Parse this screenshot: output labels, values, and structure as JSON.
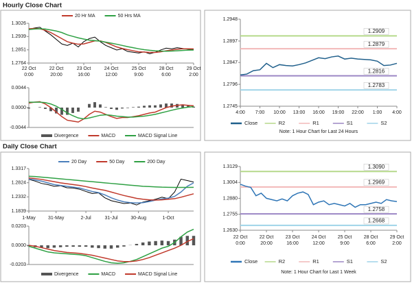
{
  "headings": [
    "Hourly Close Chart",
    "Daily Close Chart"
  ],
  "chart_data": [
    {
      "type": "line",
      "xlim": [
        0,
        30
      ],
      "ylim": [
        1.2764,
        1.3026
      ],
      "yticks": [
        1.2764,
        1.2851,
        1.2939,
        1.3026
      ],
      "xticks": [
        {
          "value": 0,
          "label": [
            "22 Oct",
            "0:00"
          ]
        },
        {
          "value": 5,
          "label": [
            "22 Oct",
            "20:00"
          ]
        },
        {
          "value": 10,
          "label": [
            "23 Oct",
            "16:00"
          ]
        },
        {
          "value": 15,
          "label": [
            "24 Oct",
            "12:00"
          ]
        },
        {
          "value": 20,
          "label": [
            "25 Oct",
            "9:00"
          ]
        },
        {
          "value": 25,
          "label": [
            "28 Oct",
            "6:00"
          ]
        },
        {
          "value": 30,
          "label": [
            "29 Oct",
            "2:00"
          ]
        }
      ],
      "series": [
        {
          "color": "#000000",
          "values": [
            1.2985,
            1.2995,
            1.3,
            1.2975,
            1.295,
            1.292,
            1.289,
            1.288,
            1.2895,
            1.287,
            1.2905,
            1.2925,
            1.2935,
            1.2905,
            1.288,
            1.2865,
            1.285,
            1.2858,
            1.284,
            1.2835,
            1.283,
            1.2838,
            1.2825,
            1.2835,
            1.285,
            1.2862,
            1.2858,
            1.2865,
            1.286,
            1.2855,
            1.2852
          ]
        },
        {
          "name": "20 Hr MA",
          "color": "#c0392b",
          "values": [
            1.299,
            1.2992,
            1.299,
            1.298,
            1.2965,
            1.2945,
            1.2925,
            1.2905,
            1.2895,
            1.2888,
            1.289,
            1.29,
            1.291,
            1.291,
            1.29,
            1.2885,
            1.287,
            1.286,
            1.2852,
            1.2845,
            1.2838,
            1.2836,
            1.2834,
            1.2834,
            1.2838,
            1.2845,
            1.285,
            1.2855,
            1.2858,
            1.2858,
            1.2857
          ]
        },
        {
          "name": "50 Hrs MA",
          "color": "#2ea043",
          "values": [
            1.2985,
            1.2988,
            1.299,
            1.2988,
            1.2982,
            1.2975,
            1.2965,
            1.295,
            1.294,
            1.293,
            1.2922,
            1.2915,
            1.2912,
            1.2908,
            1.2902,
            1.2895,
            1.2888,
            1.288,
            1.2872,
            1.2865,
            1.2858,
            1.2852,
            1.2848,
            1.2845,
            1.2843,
            1.2842,
            1.2843,
            1.2845,
            1.2847,
            1.2849,
            1.285
          ]
        }
      ]
    },
    {
      "type": "combo",
      "xlim": [
        0,
        30
      ],
      "ylim": [
        -0.0044,
        0.0044
      ],
      "yticks": [
        0.0044,
        {
          "value": 0,
          "label": "0.0000"
        },
        -0.0044
      ],
      "series": [
        {
          "name": "Divergence",
          "type": "bar",
          "color": "#555555",
          "values": [
            -0.0002,
            0,
            0.0001,
            -0.0003,
            -0.0008,
            -0.0013,
            -0.0016,
            -0.0016,
            -0.0012,
            -0.0009,
            0,
            0.0008,
            0.0012,
            0.0007,
            0.0001,
            -0.0003,
            -0.0005,
            -0.0002,
            -0.0001,
            0.0001,
            0.0002,
            0.0004,
            0.0005,
            0.0005,
            0.0007,
            0.0009,
            0.0009,
            0.0008,
            0.0007,
            0.0004,
            0.0002
          ]
        },
        {
          "name": "MACD",
          "color": "#c0392b",
          "values": [
            0.001,
            0.0012,
            0.0013,
            0.0008,
            0,
            -0.001,
            -0.002,
            -0.0028,
            -0.003,
            -0.0032,
            -0.0025,
            -0.0015,
            -0.0008,
            -0.001,
            -0.0015,
            -0.002,
            -0.0024,
            -0.0022,
            -0.0022,
            -0.002,
            -0.0018,
            -0.0015,
            -0.0012,
            -0.001,
            -0.0005,
            0,
            0.0003,
            0.0005,
            0.0006,
            0.0005,
            0.0004
          ]
        },
        {
          "name": "MACD Signal Line",
          "color": "#2ea043",
          "values": [
            0.0012,
            0.0012,
            0.0012,
            0.0011,
            0.0008,
            0.0003,
            -0.0004,
            -0.0012,
            -0.0018,
            -0.0023,
            -0.0025,
            -0.0023,
            -0.002,
            -0.0017,
            -0.0016,
            -0.0017,
            -0.0019,
            -0.002,
            -0.0021,
            -0.0021,
            -0.002,
            -0.0019,
            -0.0017,
            -0.0015,
            -0.0012,
            -0.0009,
            -0.0006,
            -0.0003,
            -0.0001,
            0.0001,
            0.0002
          ]
        }
      ]
    },
    {
      "type": "line",
      "xlim": [
        0,
        24
      ],
      "ylim": [
        1.2745,
        1.2948
      ],
      "yticks": [
        1.2745,
        1.2796,
        1.2847,
        1.2897,
        1.2948
      ],
      "xticks": [
        {
          "value": 0,
          "label": "4:00"
        },
        {
          "value": 3,
          "label": "7:00"
        },
        {
          "value": 6,
          "label": "10:00"
        },
        {
          "value": 9,
          "label": "13:00"
        },
        {
          "value": 12,
          "label": "16:00"
        },
        {
          "value": 15,
          "label": "19:00"
        },
        {
          "value": 18,
          "label": "22:00"
        },
        {
          "value": 21,
          "label": "1:00"
        },
        {
          "value": 24,
          "label": "4:00"
        }
      ],
      "series": [
        {
          "name": "Close",
          "color": "#1f5f8b",
          "values": [
            1.2818,
            1.282,
            1.2828,
            1.283,
            1.2845,
            1.2835,
            1.2842,
            1.284,
            1.2839,
            1.2842,
            1.2846,
            1.2852,
            1.2858,
            1.2856,
            1.286,
            1.2862,
            1.2855,
            1.2857,
            1.2855,
            1.2854,
            1.2853,
            1.285,
            1.284,
            1.2841,
            1.2845
          ]
        }
      ],
      "levels": [
        {
          "name": "R2",
          "color": "#b5d98a",
          "value": 1.2909
        },
        {
          "name": "R1",
          "color": "#f2b8b8",
          "value": 1.2879
        },
        {
          "name": "S1",
          "color": "#9b86c4",
          "value": 1.2816
        },
        {
          "name": "S2",
          "color": "#9fd4e8",
          "value": 1.2783
        }
      ],
      "note": "Note: 1 Hour Chart for Last 24 Hours"
    },
    {
      "type": "line",
      "xlim": [
        0,
        26
      ],
      "ylim": [
        1.1839,
        1.3317
      ],
      "yticks": [
        1.1839,
        1.2332,
        1.2824,
        1.3317
      ],
      "xticks": [
        {
          "value": 0,
          "label": "1-May"
        },
        {
          "value": 4.3,
          "label": "31-May"
        },
        {
          "value": 9,
          "label": "2-Jul"
        },
        {
          "value": 13,
          "label": "31-Jul"
        },
        {
          "value": 17.3,
          "label": "30-Aug"
        },
        {
          "value": 22,
          "label": "1-Oct"
        }
      ],
      "series": [
        {
          "color": "#000000",
          "values": [
            1.294,
            1.288,
            1.28,
            1.276,
            1.27,
            1.272,
            1.265,
            1.264,
            1.26,
            1.252,
            1.245,
            1.247,
            1.23,
            1.22,
            1.215,
            1.21,
            1.212,
            1.205,
            1.215,
            1.22,
            1.225,
            1.232,
            1.227,
            1.25,
            1.295,
            1.29,
            1.285
          ]
        },
        {
          "name": "20 Day",
          "color": "#4a7ebb",
          "values": [
            1.295,
            1.292,
            1.288,
            1.282,
            1.276,
            1.273,
            1.27,
            1.267,
            1.264,
            1.258,
            1.252,
            1.248,
            1.24,
            1.23,
            1.222,
            1.216,
            1.213,
            1.212,
            1.213,
            1.217,
            1.222,
            1.226,
            1.229,
            1.235,
            1.25,
            1.27,
            1.282
          ]
        },
        {
          "name": "50 Day",
          "color": "#c0392b",
          "values": [
            1.299,
            1.297,
            1.294,
            1.29,
            1.286,
            1.282,
            1.279,
            1.276,
            1.273,
            1.269,
            1.264,
            1.26,
            1.256,
            1.25,
            1.244,
            1.238,
            1.233,
            1.228,
            1.225,
            1.223,
            1.222,
            1.223,
            1.225,
            1.227,
            1.232,
            1.238,
            1.244
          ]
        },
        {
          "name": "200 Day",
          "color": "#2ea043",
          "values": [
            1.305,
            1.304,
            1.302,
            1.3,
            1.298,
            1.296,
            1.294,
            1.292,
            1.29,
            1.288,
            1.286,
            1.284,
            1.282,
            1.28,
            1.278,
            1.276,
            1.274,
            1.272,
            1.27,
            1.269,
            1.268,
            1.267,
            1.2665,
            1.266,
            1.266,
            1.2662,
            1.2665
          ]
        }
      ]
    },
    {
      "type": "combo",
      "xlim": [
        0,
        26
      ],
      "ylim": [
        -0.0203,
        0.0203
      ],
      "yticks": [
        0.0203,
        {
          "value": 0,
          "label": "0.0000"
        },
        -0.0203
      ],
      "series": [
        {
          "name": "Divergence",
          "type": "bar",
          "color": "#555555",
          "values": [
            -0.001,
            -0.002,
            -0.0025,
            -0.003,
            -0.0025,
            -0.002,
            -0.0015,
            -0.0015,
            -0.0015,
            -0.0015,
            -0.0025,
            -0.003,
            -0.0035,
            -0.0035,
            -0.0025,
            -0.0013,
            0.0002,
            0.0015,
            0.003,
            0.004,
            0.0045,
            0.005,
            0.0045,
            0.006,
            0.009,
            0.01,
            0.01
          ]
        },
        {
          "name": "MACD",
          "color": "#2ea043",
          "values": [
            -0.001,
            -0.003,
            -0.005,
            -0.007,
            -0.008,
            -0.0085,
            -0.009,
            -0.0095,
            -0.01,
            -0.011,
            -0.013,
            -0.015,
            -0.017,
            -0.0185,
            -0.019,
            -0.0185,
            -0.017,
            -0.015,
            -0.012,
            -0.009,
            -0.006,
            -0.003,
            -0.001,
            0.003,
            0.009,
            0.014,
            0.017
          ]
        },
        {
          "name": "MACD Signal Line",
          "color": "#c0392b",
          "values": [
            0,
            -0.001,
            -0.0025,
            -0.004,
            -0.0055,
            -0.0065,
            -0.0075,
            -0.008,
            -0.0085,
            -0.0095,
            -0.0105,
            -0.012,
            -0.0135,
            -0.015,
            -0.0165,
            -0.0172,
            -0.0172,
            -0.0165,
            -0.015,
            -0.013,
            -0.0105,
            -0.008,
            -0.0055,
            -0.003,
            0,
            0.004,
            0.007
          ]
        }
      ]
    },
    {
      "type": "line",
      "xlim": [
        0,
        30
      ],
      "ylim": [
        1.263,
        1.3129
      ],
      "yticks": [
        {
          "value": 1.263,
          "label": "1.2630"
        },
        1.2755,
        {
          "value": 1.288,
          "label": "1.2880"
        },
        1.3004,
        1.3129
      ],
      "xticks": [
        {
          "value": 0,
          "label": [
            "22 Oct",
            "0:00"
          ]
        },
        {
          "value": 5,
          "label": [
            "22 Oct",
            "20:00"
          ]
        },
        {
          "value": 10,
          "label": [
            "23 Oct",
            "16:00"
          ]
        },
        {
          "value": 15,
          "label": [
            "24 Oct",
            "12:00"
          ]
        },
        {
          "value": 20,
          "label": [
            "25 Oct",
            "9:00"
          ]
        },
        {
          "value": 25,
          "label": [
            "28 Oct",
            "6:00"
          ]
        },
        {
          "value": 30,
          "label": [
            "29 Oct",
            "2:00"
          ]
        }
      ],
      "series": [
        {
          "name": "Close",
          "color": "#2e75b6",
          "values": [
            1.299,
            1.2975,
            1.2965,
            1.29,
            1.292,
            1.288,
            1.287,
            1.286,
            1.2875,
            1.286,
            1.29,
            1.292,
            1.293,
            1.291,
            1.283,
            1.285,
            1.286,
            1.283,
            1.284,
            1.283,
            1.282,
            1.284,
            1.281,
            1.283,
            1.283,
            1.284,
            1.285,
            1.284,
            1.287,
            1.286,
            1.2855
          ]
        }
      ],
      "levels": [
        {
          "name": "R2",
          "color": "#b5d98a",
          "value": 1.309,
          "label": "1.3090"
        },
        {
          "name": "R1",
          "color": "#f2b8b8",
          "value": 1.2969
        },
        {
          "name": "S1",
          "color": "#9b86c4",
          "value": 1.2758
        },
        {
          "name": "S2",
          "color": "#9fd4e8",
          "value": 1.2668
        }
      ],
      "note": "Note: 1 Hour Chart for Last 1 Week"
    }
  ]
}
